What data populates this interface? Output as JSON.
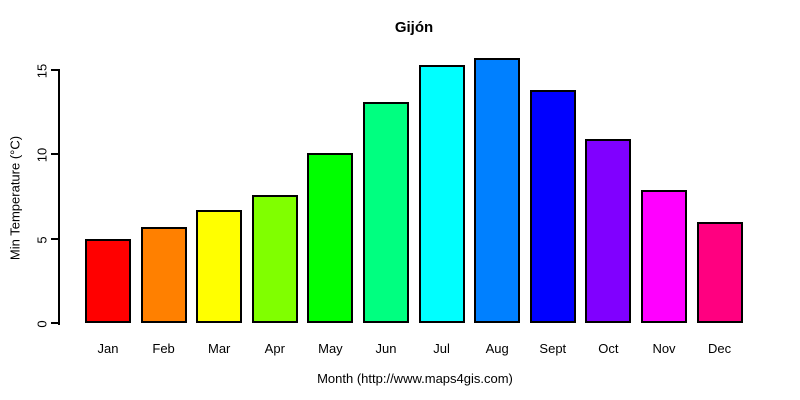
{
  "page": {
    "background": "#ffffff",
    "text_color": "#000000"
  },
  "chart_data": {
    "type": "bar",
    "title": "Gijón",
    "xlabel": "Month (http://www.maps4gis.com)",
    "ylabel": "Min Temperature (°C)",
    "categories": [
      "Jan",
      "Feb",
      "Mar",
      "Apr",
      "May",
      "Jun",
      "Jul",
      "Aug",
      "Sept",
      "Oct",
      "Nov",
      "Dec"
    ],
    "values": [
      5.0,
      5.7,
      6.7,
      7.6,
      10.1,
      13.1,
      15.3,
      15.7,
      13.8,
      10.9,
      7.9,
      6.0
    ],
    "bar_colors": [
      "#FF0000",
      "#FF8000",
      "#FFFF00",
      "#80FF00",
      "#00FF00",
      "#00FF80",
      "#00FFFF",
      "#0080FF",
      "#0000FF",
      "#8000FF",
      "#FF00FF",
      "#FF0080"
    ],
    "bar_border_color": "#000000",
    "axis_color": "#000000",
    "yticks": [
      0,
      5,
      10,
      15
    ],
    "ylim": [
      0,
      15.7
    ],
    "grid": false,
    "legend": false,
    "x_axis_line": false
  }
}
